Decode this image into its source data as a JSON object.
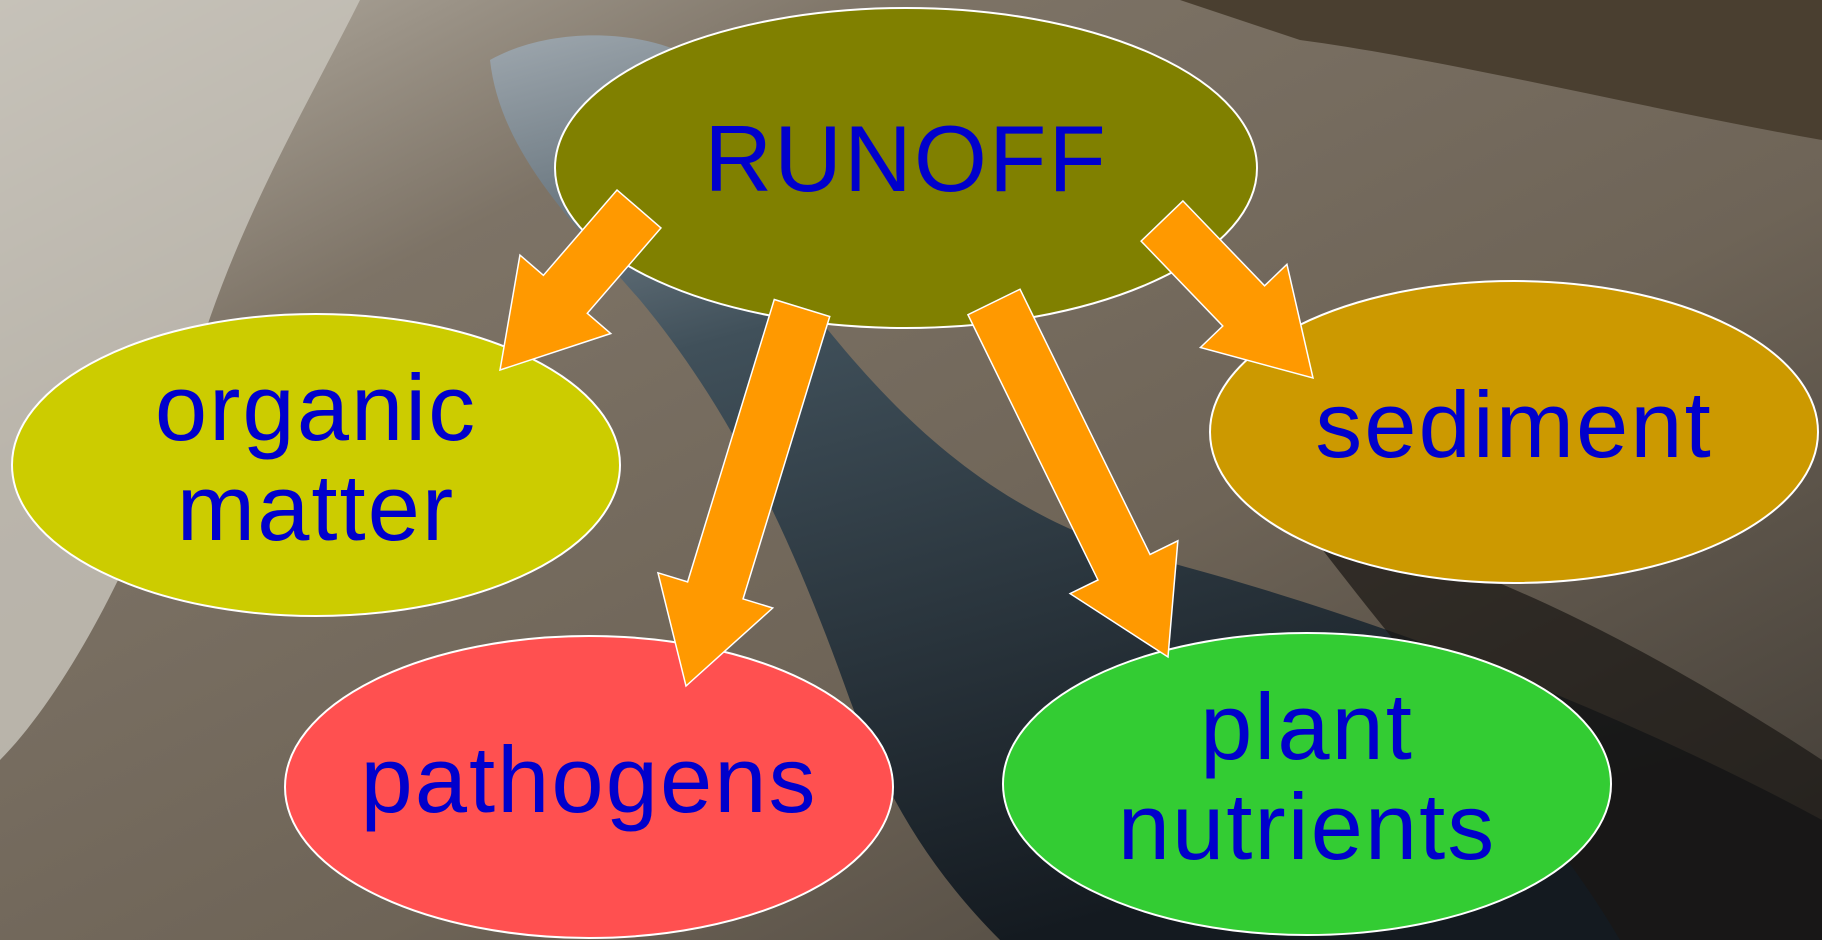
{
  "nodes": [
    {
      "lines": [
        "RUNOFF"
      ]
    },
    {
      "lines": [
        "organic",
        "matter"
      ]
    },
    {
      "lines": [
        "sediment"
      ]
    },
    {
      "lines": [
        "pathogens"
      ]
    },
    {
      "lines": [
        "plant",
        "nutrients"
      ]
    }
  ]
}
